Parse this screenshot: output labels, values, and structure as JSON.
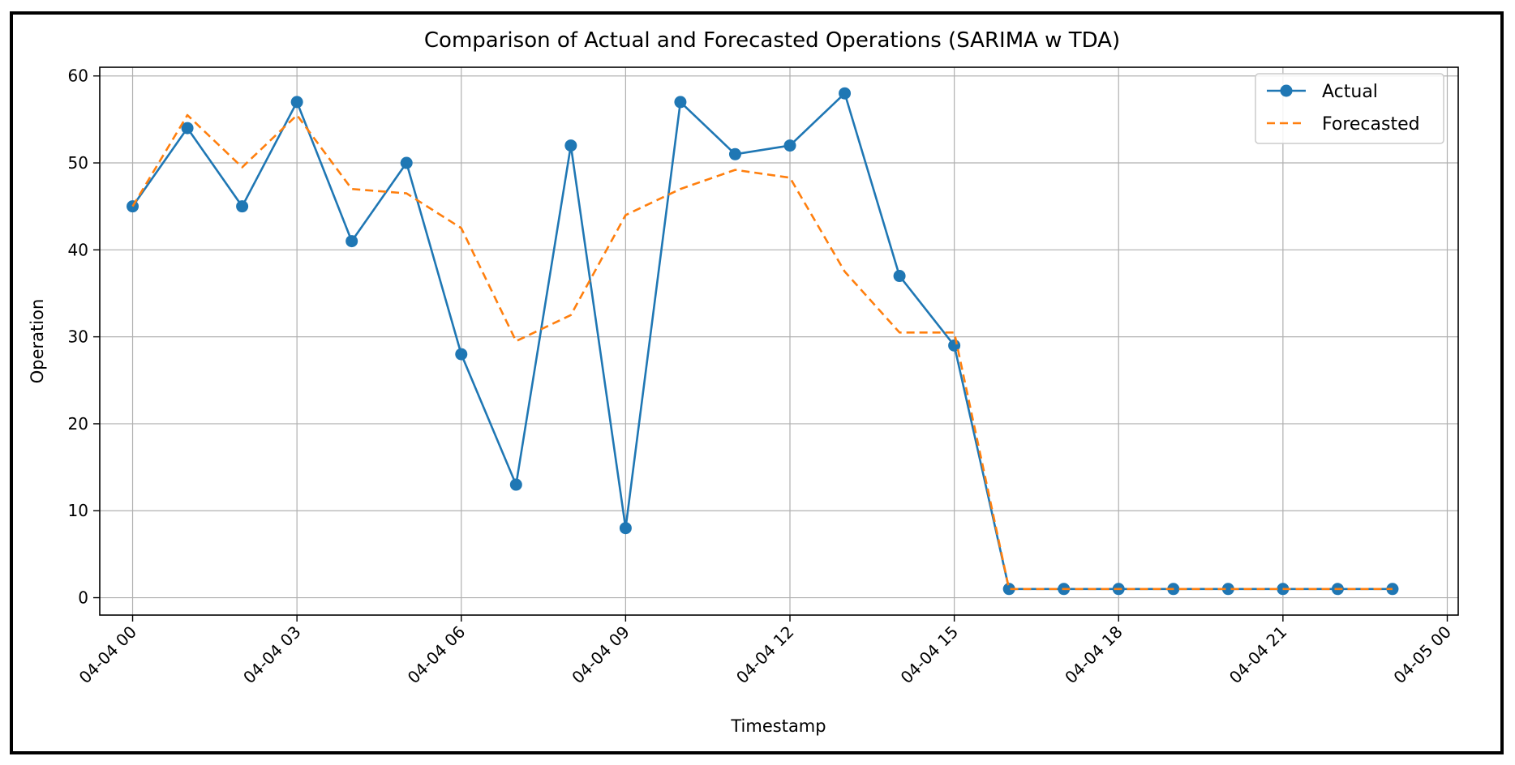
{
  "chart_data": {
    "type": "line",
    "title": "Comparison of Actual and Forecasted Operations (SARIMA w TDA)",
    "xlabel": "Timestamp",
    "ylabel": "Operation",
    "x_hours": [
      0,
      1,
      2,
      3,
      4,
      5,
      6,
      7,
      8,
      9,
      10,
      11,
      12,
      13,
      14,
      15,
      16,
      17,
      18,
      19,
      20,
      21,
      22,
      23
    ],
    "xlim_hours": [
      -0.6,
      24.2
    ],
    "ylim": [
      -2,
      61
    ],
    "x_ticks": [
      {
        "h": 0,
        "label": "04-04 00"
      },
      {
        "h": 3,
        "label": "04-04 03"
      },
      {
        "h": 6,
        "label": "04-04 06"
      },
      {
        "h": 9,
        "label": "04-04 09"
      },
      {
        "h": 12,
        "label": "04-04 12"
      },
      {
        "h": 15,
        "label": "04-04 15"
      },
      {
        "h": 18,
        "label": "04-04 18"
      },
      {
        "h": 21,
        "label": "04-04 21"
      },
      {
        "h": 24,
        "label": "04-05 00"
      }
    ],
    "y_ticks": [
      0,
      10,
      20,
      30,
      40,
      50,
      60
    ],
    "grid": true,
    "legend_position": "top-right",
    "series": [
      {
        "name": "Actual",
        "color": "#1f77b4",
        "style": "solid-markers",
        "values": [
          45,
          54,
          45,
          57,
          41,
          50,
          28,
          13,
          52,
          8,
          57,
          51,
          52,
          58,
          37,
          29,
          1,
          1,
          1,
          1,
          1,
          1,
          1,
          1
        ]
      },
      {
        "name": "Forecasted",
        "color": "#ff7f0e",
        "style": "dashed",
        "values": [
          45,
          55.5,
          49.5,
          55.5,
          47,
          46.5,
          42.5,
          29.5,
          32.5,
          44,
          47,
          49.2,
          48.3,
          37.5,
          30.5,
          30.5,
          1,
          1,
          1,
          1,
          1,
          1,
          1,
          1
        ]
      }
    ]
  }
}
